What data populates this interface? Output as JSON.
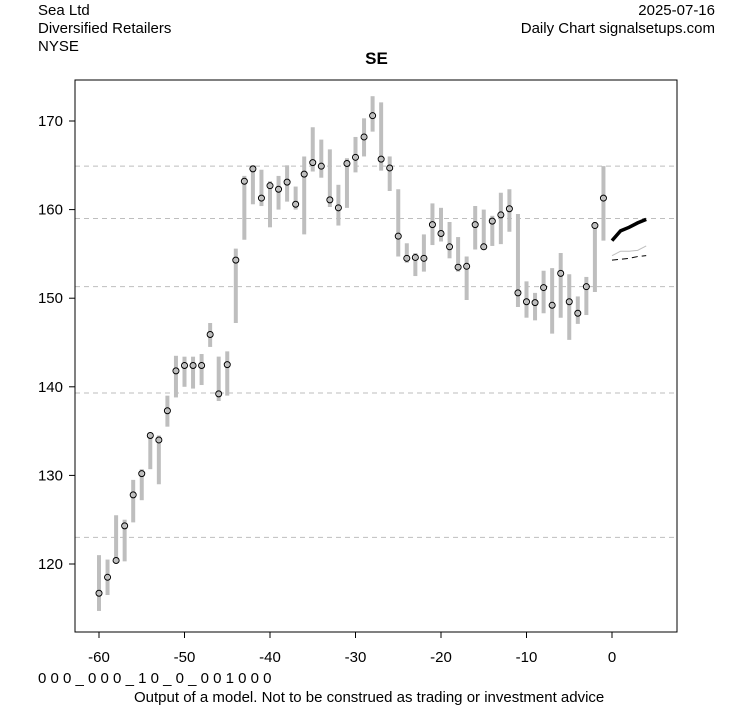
{
  "header": {
    "company": "Sea Ltd",
    "sector": "Diversified Retailers",
    "exchange": "NYSE",
    "date": "2025-07-16",
    "source": "Daily Chart signalsetups.com"
  },
  "footer": {
    "signal_code": "0 0 0 _ 0 0 0 _ 1 0 _ 0 _ 0 0 1 0 0 0",
    "disclaimer": "Output of a model. Not to be construed as trading or investment advice"
  },
  "colors": {
    "bar": "#bebebe",
    "grid": "#bebebe",
    "forecast": "#000000",
    "forecast_band": "#bebebe"
  },
  "chart_data": {
    "type": "line",
    "title": "SE",
    "xlabel": "",
    "ylabel": "",
    "xlim": [
      -61.5,
      8.5
    ],
    "ylim": [
      112.5,
      174.8
    ],
    "xticks": [
      -60,
      -50,
      -40,
      -30,
      -20,
      -10,
      0
    ],
    "yticks": [
      120,
      130,
      140,
      150,
      160,
      170
    ],
    "hlines": [
      164.9,
      159.0,
      151.3,
      139.3,
      123.0
    ],
    "bars": {
      "x": [
        -60,
        -59,
        -58,
        -57,
        -56,
        -55,
        -54,
        -53,
        -52,
        -51,
        -50,
        -49,
        -48,
        -47,
        -46,
        -45,
        -44,
        -43,
        -42,
        -41,
        -40,
        -39,
        -38,
        -37,
        -36,
        -35,
        -34,
        -33,
        -32,
        -31,
        -30,
        -29,
        -28,
        -27,
        -26,
        -25,
        -24,
        -23,
        -22,
        -21,
        -20,
        -19,
        -18,
        -17,
        -16,
        -15,
        -14,
        -13,
        -12,
        -11,
        -10,
        -9,
        -8,
        -7,
        -6,
        -5,
        -4,
        -3,
        -2,
        -1
      ],
      "low": [
        114.7,
        116.5,
        120.0,
        120.3,
        124.7,
        127.2,
        130.7,
        129.0,
        135.5,
        138.8,
        140.0,
        139.8,
        140.2,
        144.5,
        138.4,
        139.0,
        147.2,
        156.6,
        160.6,
        160.4,
        158.0,
        160.0,
        160.9,
        160.0,
        157.2,
        164.3,
        163.6,
        160.3,
        158.2,
        160.2,
        164.2,
        166.0,
        168.8,
        164.4,
        162.1,
        154.7,
        154.0,
        152.5,
        153.0,
        156.0,
        156.4,
        154.5,
        153.0,
        149.8,
        155.5,
        155.5,
        155.9,
        156.1,
        157.5,
        149.0,
        147.8,
        147.5,
        148.3,
        146.0,
        147.8,
        145.3,
        147.1,
        148.1,
        150.7,
        156.5
      ],
      "high": [
        121.0,
        120.5,
        125.5,
        125.0,
        129.5,
        130.7,
        134.8,
        134.5,
        139.0,
        143.5,
        143.4,
        143.4,
        143.7,
        147.2,
        143.4,
        144.0,
        155.6,
        163.8,
        165.0,
        164.5,
        163.2,
        163.8,
        165.0,
        162.6,
        166.0,
        169.3,
        167.9,
        166.8,
        162.8,
        165.8,
        168.2,
        170.3,
        172.8,
        172.1,
        166.0,
        162.3,
        156.2,
        155.1,
        157.2,
        160.7,
        160.2,
        158.6,
        156.9,
        154.7,
        160.4,
        160.0,
        159.3,
        161.9,
        162.3,
        159.5,
        151.9,
        150.6,
        153.1,
        153.4,
        155.1,
        152.7,
        150.2,
        152.4,
        158.6,
        164.9
      ],
      "close": [
        116.7,
        118.5,
        120.4,
        124.3,
        127.8,
        130.2,
        134.5,
        134.0,
        137.3,
        141.8,
        142.4,
        142.4,
        142.4,
        145.9,
        139.2,
        142.5,
        154.3,
        163.2,
        164.6,
        161.3,
        162.7,
        162.3,
        163.1,
        160.6,
        164.0,
        165.3,
        164.9,
        161.1,
        160.2,
        165.2,
        165.9,
        168.2,
        170.6,
        165.7,
        164.7,
        157.0,
        154.5,
        154.6,
        154.5,
        158.3,
        157.3,
        155.8,
        153.5,
        153.6,
        158.3,
        155.8,
        158.7,
        159.4,
        160.1,
        150.6,
        149.6,
        149.5,
        151.2,
        149.2,
        152.8,
        149.6,
        148.3,
        151.3,
        158.2,
        161.3
      ]
    },
    "forecast": {
      "x": [
        0,
        1,
        2,
        3,
        4
      ],
      "mid": [
        156.5,
        157.6,
        158.0,
        158.5,
        158.9
      ],
      "upper_gray": [
        154.8,
        155.3,
        155.3,
        155.4,
        155.9
      ],
      "lower_dashed": [
        154.3,
        154.4,
        154.5,
        154.7,
        154.8
      ]
    }
  }
}
